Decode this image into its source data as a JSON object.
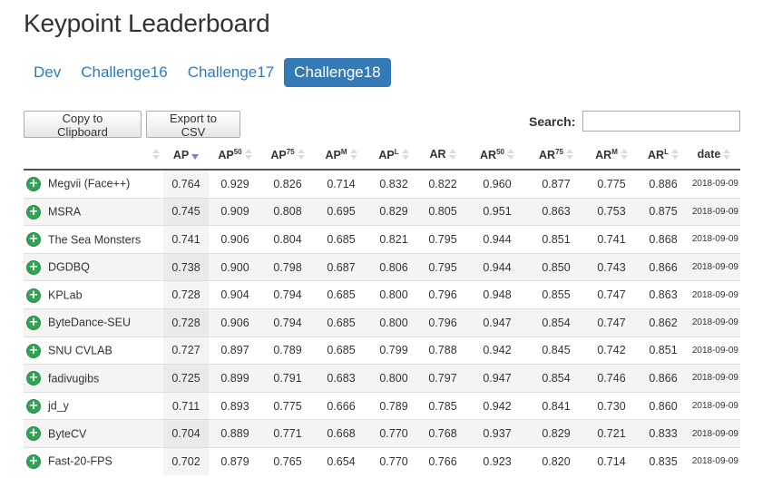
{
  "page": {
    "title": "Keypoint Leaderboard"
  },
  "tabs": [
    {
      "label": "Dev",
      "active": false
    },
    {
      "label": "Challenge16",
      "active": false
    },
    {
      "label": "Challenge17",
      "active": false
    },
    {
      "label": "Challenge18",
      "active": true
    }
  ],
  "toolbar": {
    "copy_label": "Copy to Clipboard",
    "csv_label": "Export to CSV",
    "search_label": "Search:",
    "search_value": ""
  },
  "columns": [
    {
      "key": "expand",
      "base": "",
      "sup": ""
    },
    {
      "key": "ap",
      "base": "AP",
      "sup": "",
      "sorted": true
    },
    {
      "key": "ap50",
      "base": "AP",
      "sup": "50"
    },
    {
      "key": "ap75",
      "base": "AP",
      "sup": "75"
    },
    {
      "key": "apm",
      "base": "AP",
      "sup": "M"
    },
    {
      "key": "apl",
      "base": "AP",
      "sup": "L"
    },
    {
      "key": "ar",
      "base": "AR",
      "sup": ""
    },
    {
      "key": "ar50",
      "base": "AR",
      "sup": "50"
    },
    {
      "key": "ar75",
      "base": "AR",
      "sup": "75"
    },
    {
      "key": "arm",
      "base": "AR",
      "sup": "M"
    },
    {
      "key": "arl",
      "base": "AR",
      "sup": "L"
    },
    {
      "key": "date",
      "base": "date",
      "sup": ""
    }
  ],
  "rows": [
    {
      "name": "Megvii (Face++)",
      "values": [
        "0.764",
        "0.929",
        "0.826",
        "0.714",
        "0.832",
        "0.822",
        "0.960",
        "0.877",
        "0.775",
        "0.886"
      ],
      "date": "2018-09-09"
    },
    {
      "name": "MSRA",
      "values": [
        "0.745",
        "0.909",
        "0.808",
        "0.695",
        "0.829",
        "0.805",
        "0.951",
        "0.863",
        "0.753",
        "0.875"
      ],
      "date": "2018-09-09"
    },
    {
      "name": "The Sea Monsters",
      "values": [
        "0.741",
        "0.906",
        "0.804",
        "0.685",
        "0.821",
        "0.795",
        "0.944",
        "0.851",
        "0.741",
        "0.868"
      ],
      "date": "2018-09-09"
    },
    {
      "name": "DGDBQ",
      "values": [
        "0.738",
        "0.900",
        "0.798",
        "0.687",
        "0.806",
        "0.795",
        "0.944",
        "0.850",
        "0.743",
        "0.866"
      ],
      "date": "2018-09-09"
    },
    {
      "name": "KPLab",
      "values": [
        "0.728",
        "0.904",
        "0.794",
        "0.685",
        "0.800",
        "0.796",
        "0.948",
        "0.855",
        "0.747",
        "0.863"
      ],
      "date": "2018-09-09"
    },
    {
      "name": "ByteDance-SEU",
      "values": [
        "0.728",
        "0.906",
        "0.794",
        "0.685",
        "0.800",
        "0.796",
        "0.947",
        "0.854",
        "0.747",
        "0.862"
      ],
      "date": "2018-09-09"
    },
    {
      "name": "SNU CVLAB",
      "values": [
        "0.727",
        "0.897",
        "0.789",
        "0.685",
        "0.799",
        "0.788",
        "0.942",
        "0.845",
        "0.742",
        "0.851"
      ],
      "date": "2018-09-09"
    },
    {
      "name": "fadivugibs",
      "values": [
        "0.725",
        "0.899",
        "0.791",
        "0.683",
        "0.800",
        "0.797",
        "0.947",
        "0.854",
        "0.746",
        "0.866"
      ],
      "date": "2018-09-09"
    },
    {
      "name": "jd_y",
      "values": [
        "0.711",
        "0.893",
        "0.775",
        "0.666",
        "0.789",
        "0.785",
        "0.942",
        "0.841",
        "0.730",
        "0.860"
      ],
      "date": "2018-09-09"
    },
    {
      "name": "ByteCV",
      "values": [
        "0.704",
        "0.889",
        "0.771",
        "0.668",
        "0.770",
        "0.768",
        "0.937",
        "0.829",
        "0.721",
        "0.833"
      ],
      "date": "2018-09-09"
    },
    {
      "name": "Fast-20-FPS",
      "values": [
        "0.702",
        "0.879",
        "0.765",
        "0.654",
        "0.770",
        "0.766",
        "0.923",
        "0.820",
        "0.714",
        "0.835"
      ],
      "date": "2018-09-09"
    }
  ],
  "icons": {
    "expand": "plus-circle-icon",
    "sort": "sort-arrows-icon",
    "sort_desc": "sort-desc-icon"
  },
  "colors": {
    "accent": "#337ab7",
    "expand_icon": "#31a354",
    "sort_active": "#7f7fc6"
  }
}
